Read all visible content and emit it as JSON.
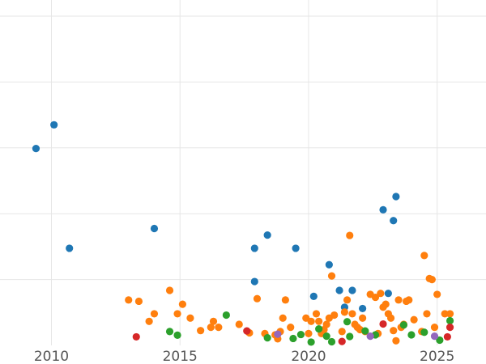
{
  "chart_data": {
    "type": "scatter",
    "title": "",
    "xlabel": "",
    "ylabel": "",
    "xlim": [
      2008.0,
      2026.9
    ],
    "ylim": [
      0,
      100
    ],
    "grid": true,
    "legend": "none",
    "x_ticks": [
      {
        "value": 2010,
        "label": "2010"
      },
      {
        "value": 2015,
        "label": "2015"
      },
      {
        "value": 2020,
        "label": "2020"
      },
      {
        "value": 2025,
        "label": "2025"
      }
    ],
    "y_gridlines": [
      20,
      40,
      60,
      80,
      100
    ],
    "series": [
      {
        "name": "blue",
        "color": "#1f77b4",
        "points": [
          [
            2009.4,
            59.8
          ],
          [
            2010.1,
            67.0
          ],
          [
            2010.7,
            29.5
          ],
          [
            2014.0,
            35.5
          ],
          [
            2017.9,
            29.5
          ],
          [
            2017.9,
            19.4
          ],
          [
            2018.4,
            33.5
          ],
          [
            2019.5,
            29.5
          ],
          [
            2020.2,
            14.9
          ],
          [
            2020.8,
            24.5
          ],
          [
            2021.2,
            16.7
          ],
          [
            2021.4,
            11.6
          ],
          [
            2021.7,
            16.7
          ],
          [
            2022.1,
            11.2
          ],
          [
            2022.9,
            41.2
          ],
          [
            2023.1,
            15.8
          ],
          [
            2023.3,
            37.9
          ],
          [
            2023.4,
            45.2
          ]
        ]
      },
      {
        "name": "orange",
        "color": "#ff7f0e",
        "points": [
          [
            2013.0,
            13.8
          ],
          [
            2013.4,
            13.4
          ],
          [
            2013.8,
            7.3
          ],
          [
            2014.0,
            9.6
          ],
          [
            2014.6,
            16.7
          ],
          [
            2014.9,
            9.6
          ],
          [
            2015.1,
            12.5
          ],
          [
            2015.4,
            8.3
          ],
          [
            2015.8,
            4.5
          ],
          [
            2016.2,
            5.5
          ],
          [
            2016.3,
            7.3
          ],
          [
            2016.5,
            5.5
          ],
          [
            2017.3,
            6.4
          ],
          [
            2017.7,
            3.8
          ],
          [
            2018.0,
            14.2
          ],
          [
            2018.3,
            3.6
          ],
          [
            2018.7,
            3.2
          ],
          [
            2018.8,
            2.0
          ],
          [
            2018.9,
            4.2
          ],
          [
            2019.0,
            8.3
          ],
          [
            2019.1,
            13.8
          ],
          [
            2019.3,
            5.5
          ],
          [
            2019.9,
            8.3
          ],
          [
            2020.0,
            3.6
          ],
          [
            2020.1,
            7.3
          ],
          [
            2020.3,
            9.6
          ],
          [
            2020.4,
            7.3
          ],
          [
            2020.5,
            3.6
          ],
          [
            2020.6,
            4.8
          ],
          [
            2020.7,
            6.4
          ],
          [
            2020.8,
            8.3
          ],
          [
            2020.9,
            21.1
          ],
          [
            2021.0,
            9.2
          ],
          [
            2021.3,
            4.2
          ],
          [
            2021.4,
            10.1
          ],
          [
            2021.5,
            13.8
          ],
          [
            2021.6,
            33.4
          ],
          [
            2021.7,
            9.6
          ],
          [
            2021.8,
            6.4
          ],
          [
            2021.9,
            5.5
          ],
          [
            2022.0,
            4.8
          ],
          [
            2022.1,
            8.3
          ],
          [
            2022.2,
            4.2
          ],
          [
            2022.4,
            15.5
          ],
          [
            2022.6,
            14.6
          ],
          [
            2022.7,
            3.6
          ],
          [
            2022.8,
            15.8
          ],
          [
            2022.9,
            11.6
          ],
          [
            2023.0,
            12.5
          ],
          [
            2023.1,
            9.6
          ],
          [
            2023.2,
            8.3
          ],
          [
            2023.3,
            4.5
          ],
          [
            2023.4,
            1.4
          ],
          [
            2023.5,
            13.8
          ],
          [
            2023.6,
            5.5
          ],
          [
            2023.7,
            6.4
          ],
          [
            2023.8,
            13.4
          ],
          [
            2023.9,
            13.8
          ],
          [
            2024.1,
            7.8
          ],
          [
            2024.4,
            4.2
          ],
          [
            2024.5,
            27.3
          ],
          [
            2024.6,
            9.6
          ],
          [
            2024.7,
            20.3
          ],
          [
            2024.8,
            20.0
          ],
          [
            2024.9,
            5.5
          ],
          [
            2025.0,
            15.5
          ],
          [
            2025.3,
            9.6
          ],
          [
            2025.5,
            9.6
          ]
        ]
      },
      {
        "name": "green",
        "color": "#2ca02c",
        "points": [
          [
            2014.6,
            4.2
          ],
          [
            2014.9,
            3.1
          ],
          [
            2016.8,
            9.2
          ],
          [
            2018.4,
            2.3
          ],
          [
            2019.4,
            2.1
          ],
          [
            2019.7,
            3.3
          ],
          [
            2020.1,
            1.0
          ],
          [
            2020.4,
            5.0
          ],
          [
            2020.7,
            2.8
          ],
          [
            2020.9,
            1.1
          ],
          [
            2021.5,
            7.2
          ],
          [
            2021.6,
            2.7
          ],
          [
            2022.2,
            4.4
          ],
          [
            2022.6,
            3.2
          ],
          [
            2023.7,
            6.2
          ],
          [
            2024.0,
            3.2
          ],
          [
            2024.5,
            4.0
          ],
          [
            2025.1,
            1.6
          ],
          [
            2025.5,
            7.5
          ]
        ]
      },
      {
        "name": "red",
        "color": "#d62728",
        "points": [
          [
            2013.3,
            2.6
          ],
          [
            2017.6,
            4.4
          ],
          [
            2021.3,
            1.2
          ],
          [
            2022.9,
            6.5
          ],
          [
            2025.4,
            2.6
          ],
          [
            2025.5,
            5.5
          ]
        ]
      },
      {
        "name": "purple",
        "color": "#9467bd",
        "points": [
          [
            2018.8,
            3.4
          ],
          [
            2022.4,
            2.8
          ],
          [
            2024.9,
            2.8
          ]
        ]
      }
    ]
  }
}
